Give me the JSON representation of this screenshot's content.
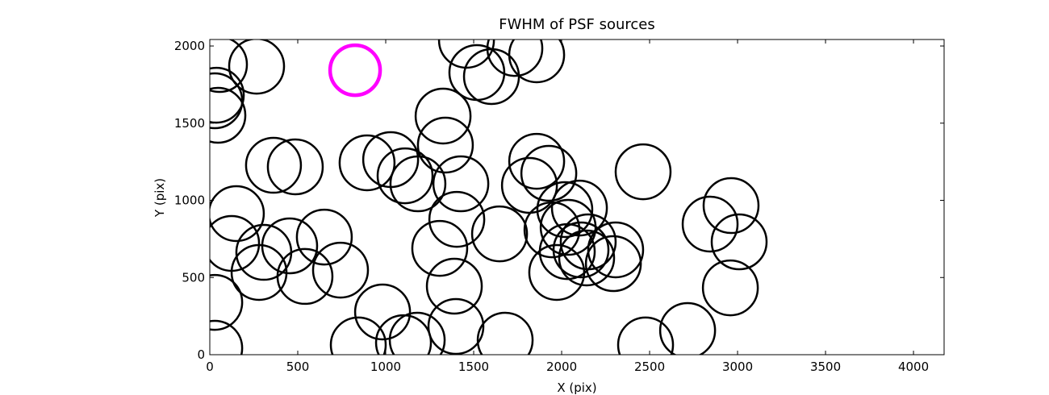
{
  "chart_data": {
    "type": "scatter",
    "title": "FWHM of PSF sources",
    "x_label": "X (pix)",
    "y_label": "Y (pix)",
    "xlim": [
      0,
      4174
    ],
    "ylim": [
      0,
      2042
    ],
    "xticks": [
      0,
      500,
      1000,
      1500,
      2000,
      2500,
      3000,
      3500,
      4000
    ],
    "yticks": [
      0,
      500,
      1000,
      1500,
      2000
    ],
    "grid": false,
    "series": [
      {
        "color": "#000000",
        "x": [
          55,
          266,
          37,
          28,
          46,
          1459,
          1734,
          1858,
          1518,
          1601,
          1326,
          1339,
          362,
          486,
          894,
          1028,
          1110,
          1183,
          1427,
          1858,
          1927,
          2463,
          151,
          124,
          307,
          280,
          541,
          454,
          651,
          743,
          28,
          28,
          844,
          1101,
          1179,
          982,
          1399,
          1390,
          1679,
          1307,
          1404,
          1647,
          1817,
          1945,
          2018,
          2101,
          1972,
          2032,
          2110,
          2142,
          2307,
          2294,
          2037,
          2477,
          2716,
          2844,
          2963,
          3009,
          2959,
          2151
        ],
        "values": [
          1880,
          1869,
          1681,
          1645,
          1551,
          2037,
          1984,
          1943,
          1828,
          1802,
          1546,
          1358,
          1227,
          1217,
          1243,
          1264,
          1159,
          1107,
          1107,
          1253,
          1175,
          1185,
          914,
          721,
          663,
          533,
          507,
          705,
          762,
          548,
          339,
          42,
          63,
          78,
          94,
          277,
          183,
          444,
          94,
          689,
          877,
          783,
          1097,
          809,
          940,
          950,
          533,
          668,
          679,
          627,
          679,
          590,
          825,
          63,
          157,
          846,
          966,
          731,
          433,
          731
        ]
      },
      {
        "color": "#ff00ff",
        "x": [
          826
        ],
        "values": [
          1843
        ]
      }
    ]
  }
}
